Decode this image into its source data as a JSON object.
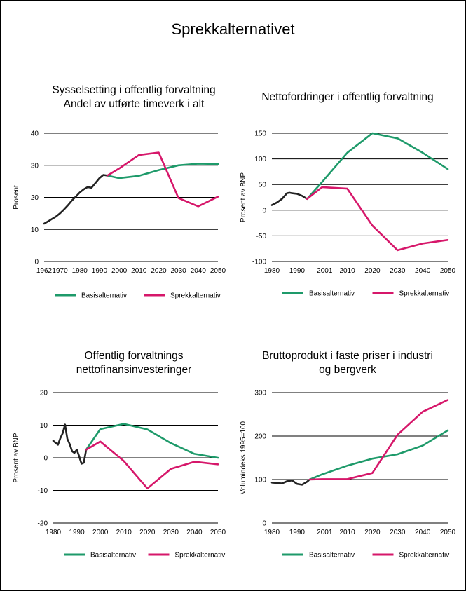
{
  "title": "Sprekkalternativet",
  "colors": {
    "historical": "#222222",
    "basis": "#1e9a6a",
    "sprekk": "#d6176a",
    "grid": "#000000"
  },
  "chart_data": [
    {
      "type": "line",
      "title": "Sysselsetting i offentlig forvaltning\nAndel av utførte timeverk i alt",
      "ylabel": "Prosent",
      "xlabel": "",
      "xlim": [
        1962,
        2050
      ],
      "ylim": [
        0,
        40
      ],
      "x_ticks": [
        1962,
        1970,
        1980,
        1990,
        2000,
        2010,
        2020,
        2030,
        2040,
        2050
      ],
      "y_ticks": [
        0,
        10,
        20,
        30,
        40
      ],
      "legend": "bottom",
      "series": [
        {
          "key": "historical",
          "x": [
            1962,
            1964,
            1966,
            1968,
            1970,
            1972,
            1974,
            1976,
            1978,
            1980,
            1982,
            1984,
            1986,
            1988,
            1990,
            1992,
            1994
          ],
          "y": [
            11.8,
            12.5,
            13.3,
            14.0,
            15.0,
            16.2,
            17.5,
            19.0,
            20.2,
            21.5,
            22.5,
            23.2,
            23.0,
            24.5,
            26.0,
            27.0,
            26.8
          ]
        },
        {
          "key": "basis",
          "name": "Basisalternativ",
          "x": [
            1994,
            2000,
            2010,
            2020,
            2030,
            2040,
            2050
          ],
          "y": [
            26.8,
            26.0,
            26.7,
            28.5,
            30.0,
            30.5,
            30.4
          ]
        },
        {
          "key": "sprekk",
          "name": "Sprekkalternativ",
          "x": [
            1994,
            2000,
            2010,
            2020,
            2030,
            2040,
            2050
          ],
          "y": [
            26.8,
            29.0,
            33.2,
            34.0,
            19.8,
            17.2,
            20.2
          ]
        }
      ]
    },
    {
      "type": "line",
      "title": "Nettofordringer i offentlig forvaltning",
      "ylabel": "Prosent av BNP",
      "xlabel": "",
      "xlim": [
        1980,
        2050
      ],
      "ylim": [
        -100,
        150
      ],
      "x_ticks": [
        1980,
        1990,
        2001,
        2010,
        2020,
        2030,
        2040,
        2050
      ],
      "y_ticks": [
        -100,
        -50,
        0,
        50,
        100,
        150
      ],
      "legend": "bottom",
      "series": [
        {
          "key": "historical",
          "x": [
            1980,
            1982,
            1984,
            1986,
            1987,
            1988,
            1990,
            1992,
            1994
          ],
          "y": [
            10,
            15,
            22,
            33,
            34,
            33,
            32,
            28,
            22
          ]
        },
        {
          "key": "basis",
          "name": "Basisalternativ",
          "x": [
            1994,
            2000,
            2010,
            2020,
            2030,
            2040,
            2050
          ],
          "y": [
            22,
            55,
            112,
            150,
            140,
            112,
            80
          ]
        },
        {
          "key": "sprekk",
          "name": "Sprekkalternativ",
          "x": [
            1994,
            2000,
            2010,
            2020,
            2030,
            2040,
            2050
          ],
          "y": [
            22,
            45,
            42,
            -30,
            -78,
            -65,
            -58
          ]
        }
      ]
    },
    {
      "type": "line",
      "title": "Offentlig forvaltnings\nnettofinansinvesteringer",
      "ylabel": "Prosent av BNP",
      "xlabel": "",
      "xlim": [
        1980,
        2050
      ],
      "ylim": [
        -20,
        20
      ],
      "x_ticks": [
        1980,
        1990,
        2000,
        2010,
        2020,
        2030,
        2040,
        2050
      ],
      "y_ticks": [
        -20,
        -10,
        0,
        10,
        20
      ],
      "legend": "bottom",
      "series": [
        {
          "key": "historical",
          "x": [
            1980,
            1982,
            1983,
            1984,
            1985,
            1986,
            1987,
            1988,
            1989,
            1990,
            1991,
            1992,
            1993,
            1994
          ],
          "y": [
            5.2,
            4.0,
            6.0,
            7.5,
            10.2,
            5.8,
            4.2,
            2.0,
            1.5,
            2.5,
            0.5,
            -1.8,
            -1.5,
            2.5
          ]
        },
        {
          "key": "basis",
          "name": "Basisalternativ",
          "x": [
            1994,
            2000,
            2010,
            2020,
            2030,
            2040,
            2050
          ],
          "y": [
            2.5,
            8.8,
            10.4,
            8.7,
            4.5,
            1.2,
            0.0
          ]
        },
        {
          "key": "sprekk",
          "name": "Sprekkalternativ",
          "x": [
            1994,
            2000,
            2010,
            2020,
            2030,
            2040,
            2050
          ],
          "y": [
            2.5,
            5.0,
            -1.0,
            -9.4,
            -3.4,
            -1.2,
            -2.0
          ]
        }
      ]
    },
    {
      "type": "line",
      "title": "Bruttoprodukt i faste priser i industri\nog bergverk",
      "ylabel": "Volumindeks 1995=100",
      "xlabel": "",
      "xlim": [
        1980,
        2050
      ],
      "ylim": [
        0,
        300
      ],
      "x_ticks": [
        1980,
        1990,
        2001,
        2010,
        2020,
        2030,
        2040,
        2050
      ],
      "y_ticks": [
        0,
        100,
        200,
        300
      ],
      "legend": "bottom",
      "series": [
        {
          "key": "historical",
          "x": [
            1980,
            1982,
            1984,
            1986,
            1988,
            1990,
            1992,
            1994,
            1995
          ],
          "y": [
            93,
            92,
            91,
            96,
            98,
            90,
            88,
            95,
            100
          ]
        },
        {
          "key": "basis",
          "name": "Basisalternativ",
          "x": [
            1995,
            2000,
            2010,
            2020,
            2030,
            2040,
            2050
          ],
          "y": [
            100,
            112,
            132,
            148,
            158,
            178,
            213
          ]
        },
        {
          "key": "sprekk",
          "name": "Sprekkalternativ",
          "x": [
            1995,
            2000,
            2010,
            2020,
            2030,
            2040,
            2050
          ],
          "y": [
            100,
            101,
            101,
            115,
            203,
            256,
            283
          ]
        }
      ]
    }
  ]
}
